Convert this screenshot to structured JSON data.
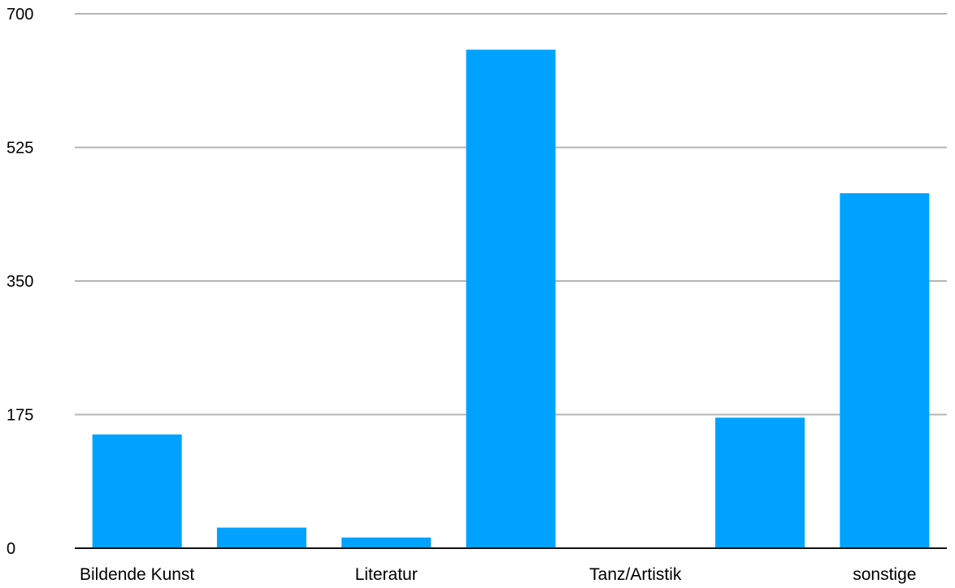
{
  "chart_data": {
    "type": "bar",
    "categories": [
      "Bildende Kunst",
      "",
      "Literatur",
      "",
      "Tanz/Artistik",
      "",
      "sonstige"
    ],
    "values": [
      149,
      27,
      14,
      653,
      0,
      171,
      465
    ],
    "ylim": [
      0,
      700
    ],
    "yticks": [
      0,
      175,
      350,
      525,
      700
    ],
    "grid": true,
    "bar_color": "#00a2ff",
    "title": "",
    "xlabel": "",
    "ylabel": ""
  }
}
